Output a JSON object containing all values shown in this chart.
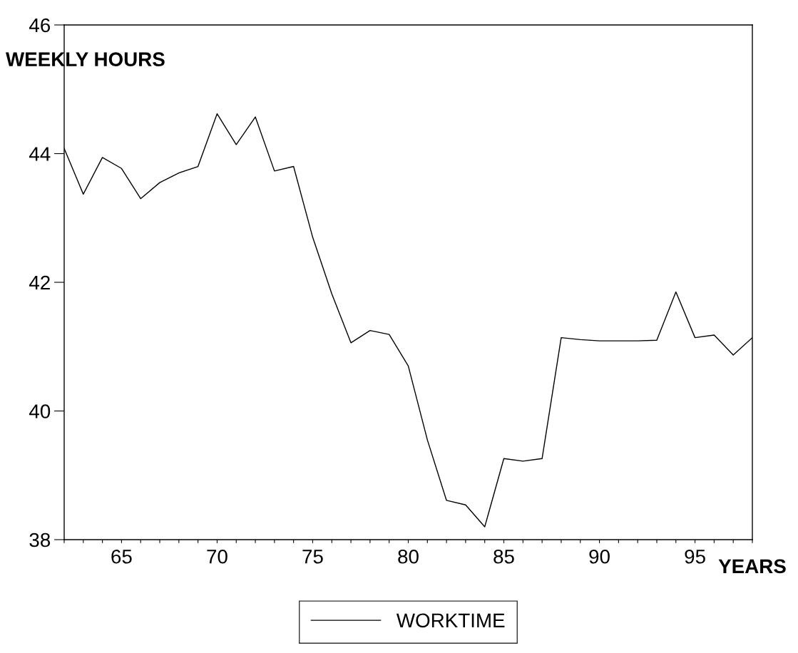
{
  "chart_data": {
    "type": "line",
    "xlabel": "YEARS",
    "ylabel": "WEEKLY HOURS",
    "x": [
      62,
      63,
      64,
      65,
      66,
      67,
      68,
      69,
      70,
      71,
      72,
      73,
      74,
      75,
      76,
      77,
      78,
      79,
      80,
      81,
      82,
      83,
      84,
      85,
      86,
      87,
      88,
      89,
      90,
      91,
      92,
      93,
      94,
      95,
      96,
      97,
      98
    ],
    "series": [
      {
        "name": "WORKTIME",
        "color": "#000000",
        "values": [
          44.08,
          43.37,
          43.94,
          43.77,
          43.3,
          43.55,
          43.7,
          43.8,
          44.62,
          44.14,
          44.57,
          43.73,
          43.8,
          42.7,
          41.82,
          41.06,
          41.25,
          41.19,
          40.7,
          39.55,
          38.61,
          38.54,
          38.2,
          39.26,
          39.22,
          39.26,
          41.14,
          41.11,
          41.09,
          41.09,
          41.09,
          41.1,
          41.85,
          41.14,
          41.18,
          40.87,
          41.14
        ]
      }
    ],
    "xlim": [
      62,
      98
    ],
    "xticks": [
      {
        "value": 62,
        "label": null
      },
      {
        "value": 63,
        "label": null
      },
      {
        "value": 64,
        "label": null
      },
      65,
      {
        "value": 66,
        "label": null
      },
      {
        "value": 67,
        "label": null
      },
      {
        "value": 68,
        "label": null
      },
      {
        "value": 69,
        "label": null
      },
      70,
      {
        "value": 71,
        "label": null
      },
      {
        "value": 72,
        "label": null
      },
      {
        "value": 73,
        "label": null
      },
      {
        "value": 74,
        "label": null
      },
      75,
      {
        "value": 76,
        "label": null
      },
      {
        "value": 77,
        "label": null
      },
      {
        "value": 78,
        "label": null
      },
      {
        "value": 79,
        "label": null
      },
      80,
      {
        "value": 81,
        "label": null
      },
      {
        "value": 82,
        "label": null
      },
      {
        "value": 83,
        "label": null
      },
      {
        "value": 84,
        "label": null
      },
      85,
      {
        "value": 86,
        "label": null
      },
      {
        "value": 87,
        "label": null
      },
      {
        "value": 88,
        "label": null
      },
      {
        "value": 89,
        "label": null
      },
      90,
      {
        "value": 91,
        "label": null
      },
      {
        "value": 92,
        "label": null
      },
      {
        "value": 93,
        "label": null
      },
      {
        "value": 94,
        "label": null
      },
      95,
      {
        "value": 96,
        "label": null
      },
      {
        "value": 97,
        "label": null
      },
      {
        "value": 98,
        "label": null
      }
    ],
    "ylim": [
      38,
      46
    ],
    "yticks": [
      38,
      40,
      42,
      44,
      46
    ],
    "grid": false,
    "legend": "bottom",
    "marker": "none",
    "line_style": "solid"
  }
}
